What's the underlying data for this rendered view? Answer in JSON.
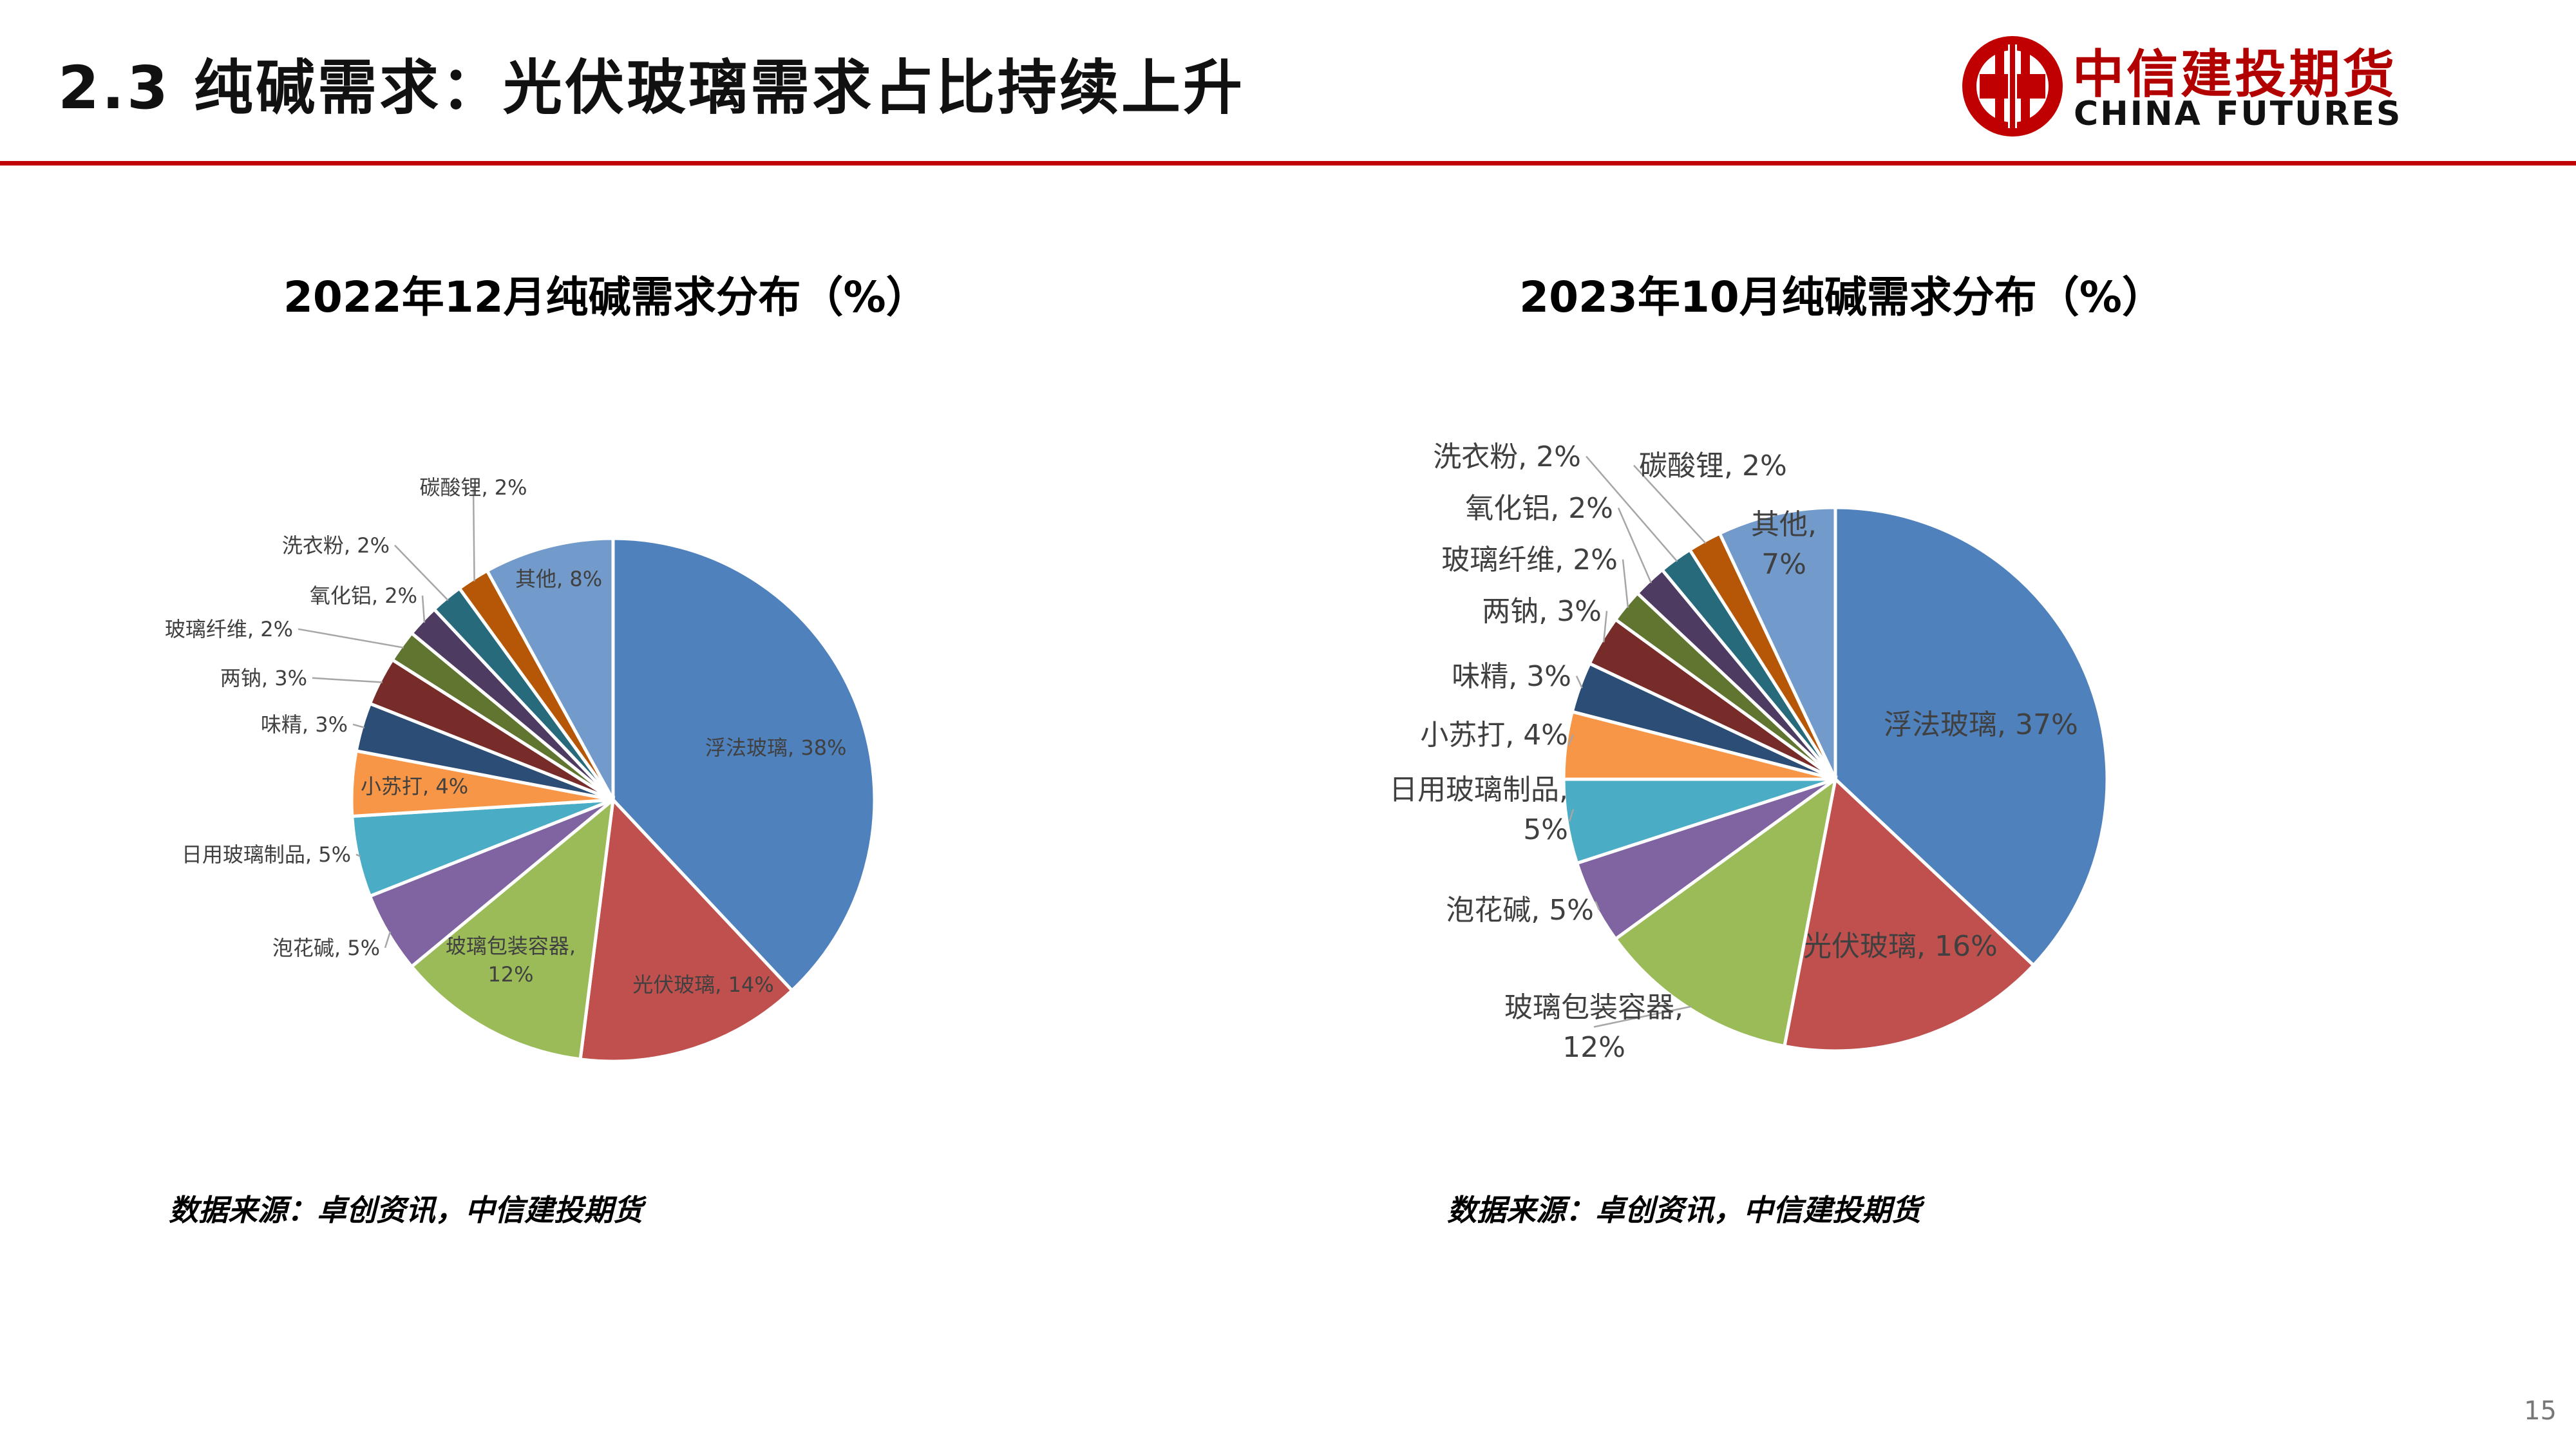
{
  "header": {
    "title": "2.3 纯碱需求：光伏玻璃需求占比持续上升",
    "logo_cn": "中信建投期货",
    "logo_en": "CHINA FUTURES",
    "brand_color": "#c00000"
  },
  "page_number": "15",
  "chart_data": [
    {
      "type": "pie",
      "title": "2022年12月纯碱需求分布（%）",
      "source": "数据来源：卓创资讯，中信建投期货",
      "slices": [
        {
          "label": "浮法玻璃, 38%",
          "value": 38,
          "color": "#4f81bd"
        },
        {
          "label": "光伏玻璃, 14%",
          "value": 14,
          "color": "#c0504d"
        },
        {
          "label": "玻璃包装容器, 12%",
          "value": 12,
          "color": "#9bbb59"
        },
        {
          "label": "泡花碱, 5%",
          "value": 5,
          "color": "#8064a2"
        },
        {
          "label": "日用玻璃制品, 5%",
          "value": 5,
          "color": "#4bacc6"
        },
        {
          "label": "小苏打, 4%",
          "value": 4,
          "color": "#f79646"
        },
        {
          "label": "味精, 3%",
          "value": 3,
          "color": "#2c4d75"
        },
        {
          "label": "两钠, 3%",
          "value": 3,
          "color": "#772c2a"
        },
        {
          "label": "玻璃纤维, 2%",
          "value": 2,
          "color": "#5f7530"
        },
        {
          "label": "氧化铝, 2%",
          "value": 2,
          "color": "#4d3b62"
        },
        {
          "label": "洗衣粉, 2%",
          "value": 2,
          "color": "#276a7c"
        },
        {
          "label": "碳酸锂, 2%",
          "value": 2,
          "color": "#b65708"
        },
        {
          "label": "其他, 8%",
          "value": 8,
          "color": "#729aca"
        }
      ]
    },
    {
      "type": "pie",
      "title": "2023年10月纯碱需求分布（%）",
      "source": "数据来源：卓创资讯，中信建投期货",
      "slices": [
        {
          "label": "浮法玻璃, 37%",
          "value": 37,
          "color": "#4f81bd"
        },
        {
          "label": "光伏玻璃, 16%",
          "value": 16,
          "color": "#c0504d"
        },
        {
          "label": "玻璃包装容器, 12%",
          "value": 12,
          "color": "#9bbb59"
        },
        {
          "label": "泡花碱, 5%",
          "value": 5,
          "color": "#8064a2"
        },
        {
          "label": "日用玻璃制品, 5%",
          "value": 5,
          "color": "#4bacc6"
        },
        {
          "label": "小苏打, 4%",
          "value": 4,
          "color": "#f79646"
        },
        {
          "label": "味精, 3%",
          "value": 3,
          "color": "#2c4d75"
        },
        {
          "label": "两钠, 3%",
          "value": 3,
          "color": "#772c2a"
        },
        {
          "label": "玻璃纤维, 2%",
          "value": 2,
          "color": "#5f7530"
        },
        {
          "label": "氧化铝, 2%",
          "value": 2,
          "color": "#4d3b62"
        },
        {
          "label": "洗衣粉, 2%",
          "value": 2,
          "color": "#276a7c"
        },
        {
          "label": "碳酸锂, 2%",
          "value": 2,
          "color": "#b65708"
        },
        {
          "label": "其他, 7%",
          "value": 7,
          "color": "#729aca"
        }
      ]
    }
  ]
}
